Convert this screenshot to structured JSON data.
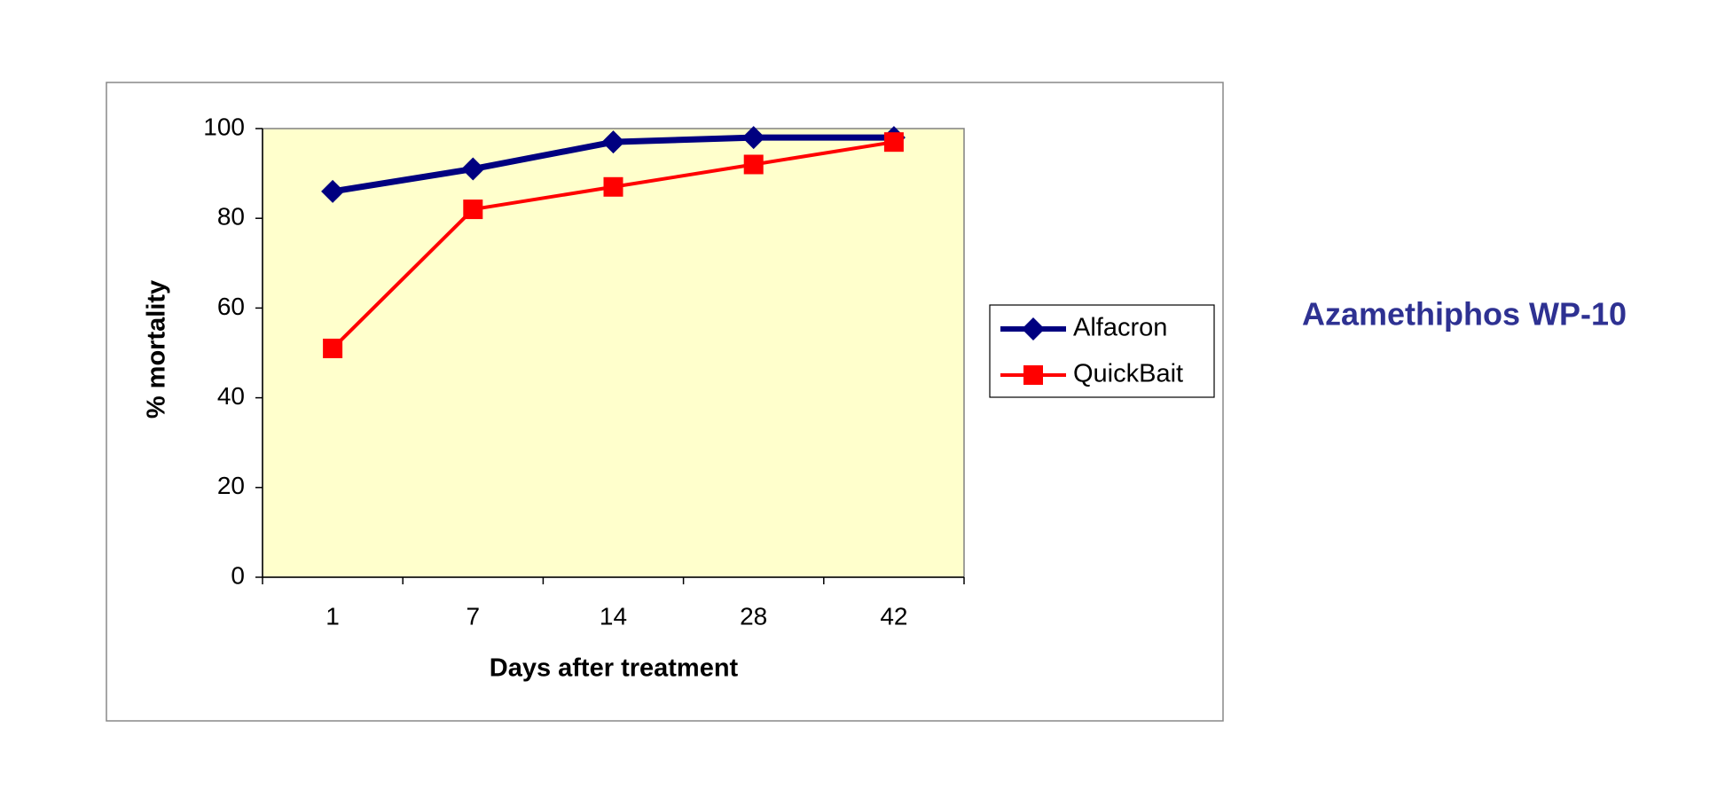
{
  "chart_data": {
    "type": "line",
    "annotation": "Azamethiphos WP-10",
    "x_label": "Days after treatment",
    "y_label": "% mortality",
    "categories": [
      "1",
      "7",
      "14",
      "28",
      "42"
    ],
    "series": [
      {
        "name": "Alfacron",
        "color": "#000080",
        "marker": "diamond",
        "values": [
          86,
          91,
          97,
          98,
          98
        ]
      },
      {
        "name": "QuickBait",
        "color": "#ff0000",
        "marker": "square",
        "values": [
          51,
          82,
          87,
          92,
          97
        ]
      }
    ],
    "ylim": [
      0,
      100
    ],
    "yticks": [
      0,
      20,
      40,
      60,
      80,
      100
    ],
    "plot_background": "#ffffcc",
    "legend": "right"
  }
}
